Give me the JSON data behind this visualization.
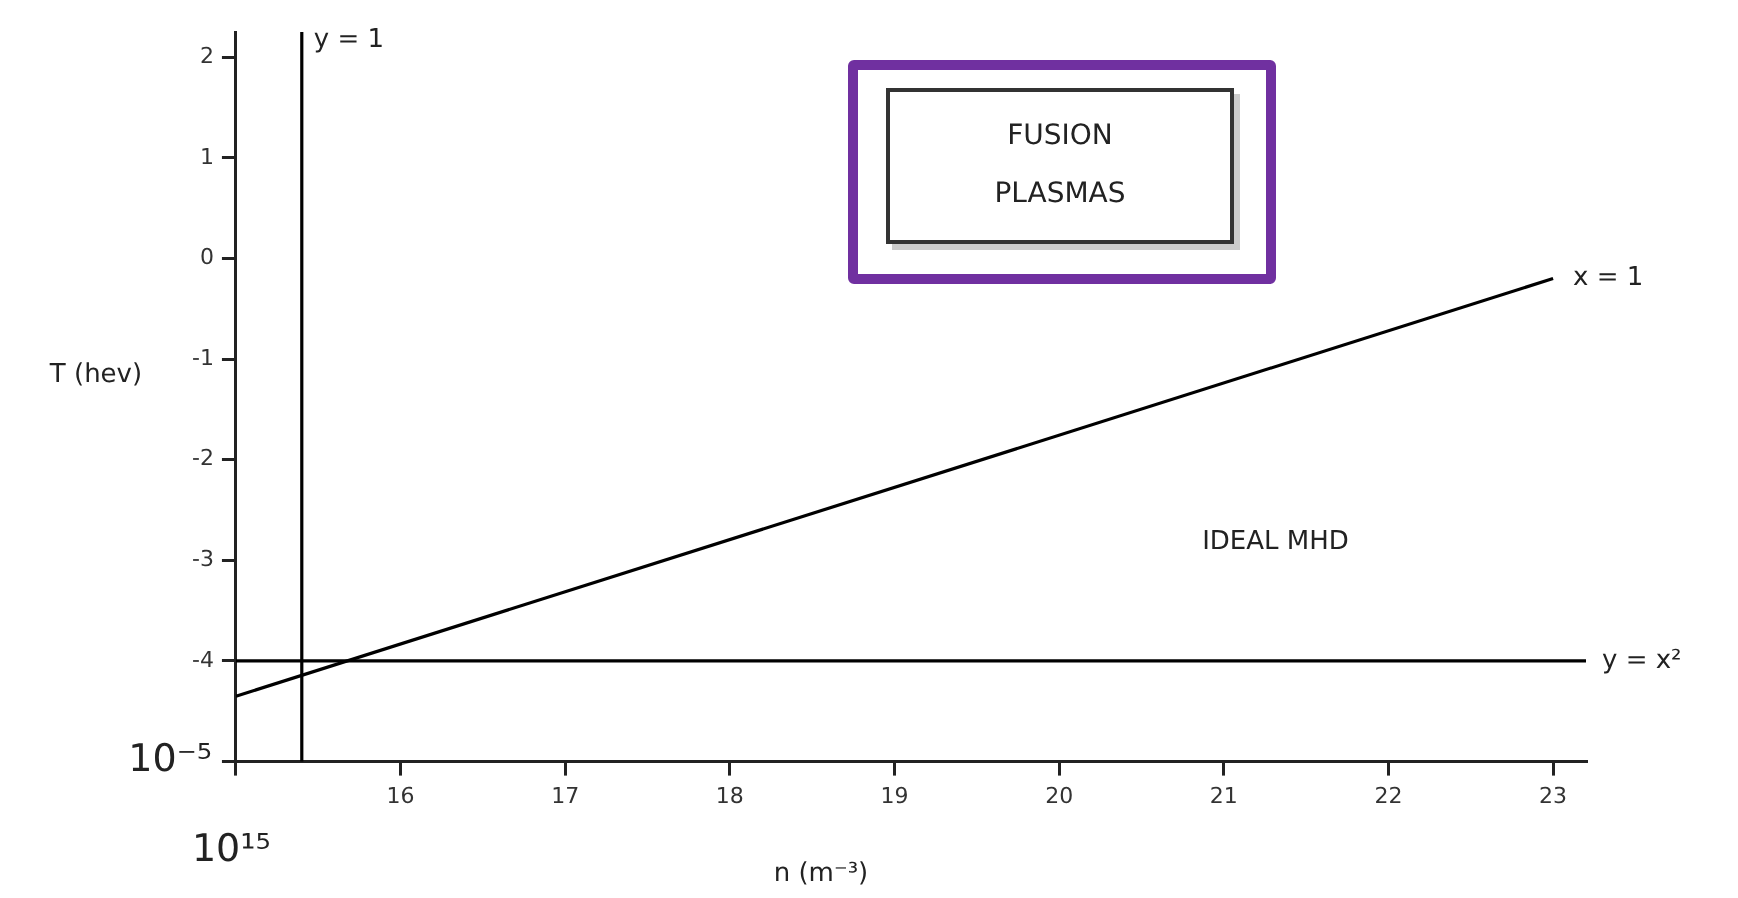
{
  "chart_data": {
    "type": "line",
    "xlabel": "n (m⁻³)",
    "ylabel": "T (hev)",
    "xlim": [
      15,
      23.2
    ],
    "xticks": [
      {
        "value": 15,
        "label": null
      },
      16,
      17,
      18,
      19,
      20,
      21,
      22,
      23
    ],
    "ylim": [
      -5,
      2.25
    ],
    "yticks": [
      {
        "value": -5,
        "label": null
      },
      -4,
      -3,
      -2,
      -1,
      0,
      1,
      2
    ],
    "series": [
      {
        "color": "#000000",
        "x": [
          15,
          23
        ],
        "values": [
          -4.35,
          -0.2
        ]
      }
    ],
    "ref_lines": [
      {
        "axis": "x",
        "value": 15.4,
        "color": "#000000"
      },
      {
        "axis": "y",
        "value": -4,
        "label": "y = x²",
        "color": "#000000"
      }
    ],
    "annotations": [
      {
        "text": "x = 1",
        "x": 23,
        "y": -0.2
      },
      {
        "text": "y = 1",
        "x": 15.4,
        "y": 2.25
      },
      "FUSION PLASMAS",
      "IDEAL MHD",
      "10⁻⁵",
      "10¹⁵"
    ],
    "grid": false,
    "legend": false,
    "marker": "none",
    "line_style": "solid"
  }
}
